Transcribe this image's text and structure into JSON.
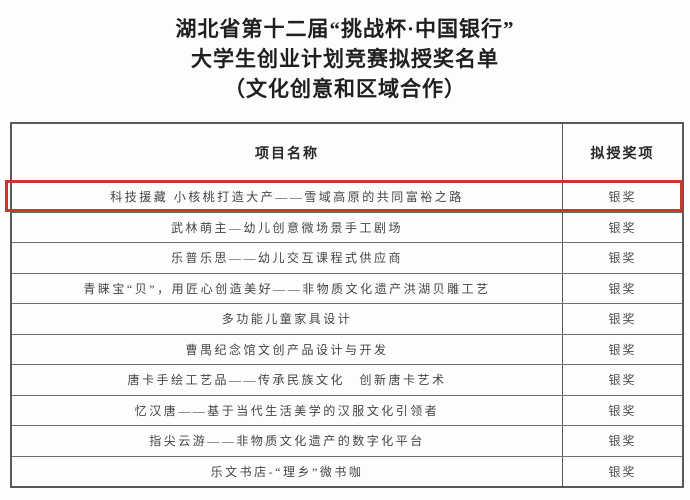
{
  "title": {
    "line1": "湖北省第十二届“挑战杯·中国银行”",
    "line2": "大学生创业计划竞赛拟授奖名单",
    "line3": "（文化创意和区域合作）"
  },
  "table": {
    "headers": [
      "项目名称",
      "拟授奖项"
    ],
    "rows": [
      {
        "name": "科技援藏 小核桃打造大产——雪域高原的共同富裕之路",
        "award": "银奖",
        "highlighted": true
      },
      {
        "name": "武林萌主—幼儿创意微场景手工剧场",
        "award": "银奖",
        "highlighted": false
      },
      {
        "name": "乐普乐思——幼儿交互课程式供应商",
        "award": "银奖",
        "highlighted": false
      },
      {
        "name": "青睐宝“贝”，用匠心创造美好——非物质文化遗产洪湖贝雕工艺",
        "award": "银奖",
        "highlighted": false
      },
      {
        "name": "多功能儿童家具设计",
        "award": "银奖",
        "highlighted": false
      },
      {
        "name": "曹禺纪念馆文创产品设计与开发",
        "award": "银奖",
        "highlighted": false
      },
      {
        "name": "唐卡手绘工艺品——传承民族文化　创新唐卡艺术",
        "award": "银奖",
        "highlighted": false
      },
      {
        "name": "忆汉唐——基于当代生活美学的汉服文化引领者",
        "award": "银奖",
        "highlighted": false
      },
      {
        "name": "指尖云游——非物质文化遗产的数字化平台",
        "award": "银奖",
        "highlighted": false
      },
      {
        "name": "乐文书店-“理乡”微书咖",
        "award": "银奖",
        "highlighted": false
      }
    ]
  },
  "colors": {
    "highlight_border": "#c63a2b",
    "table_border": "#595959",
    "row_divider": "#6e6e6e",
    "text": "#454545",
    "title_text": "#1f1f1f",
    "background": "#fdfdfd"
  }
}
